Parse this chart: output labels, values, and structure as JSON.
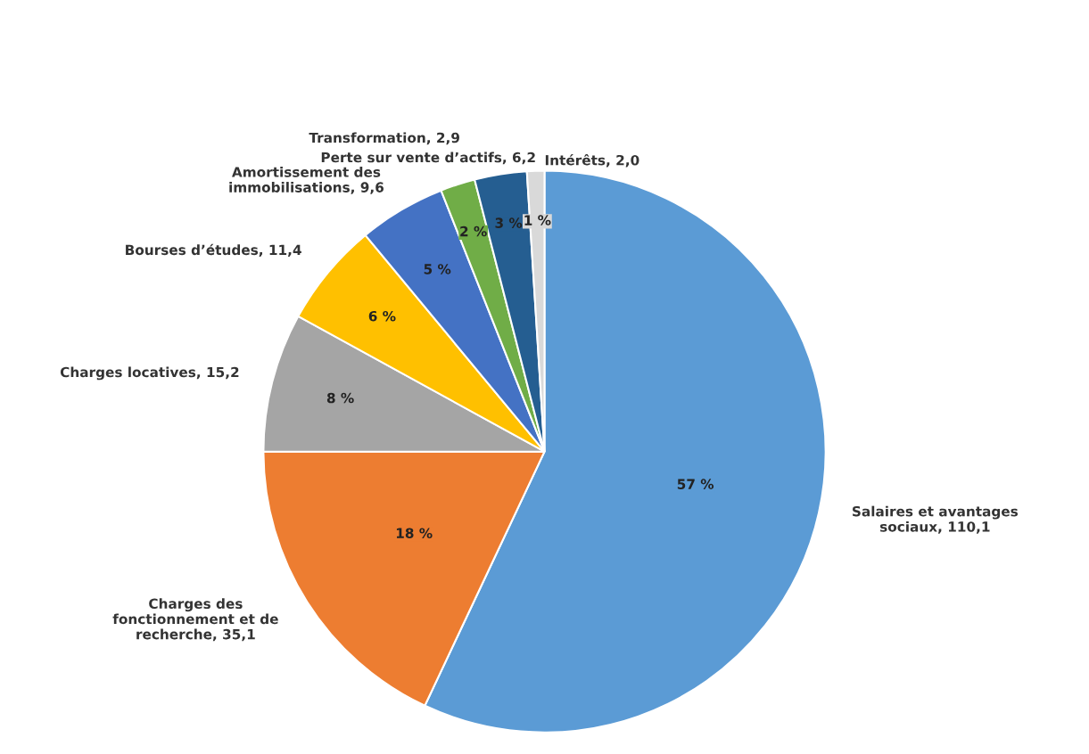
{
  "chart_data": {
    "type": "pie",
    "categories": [
      "Salaires et avantages\nsociaux, 110,1",
      "Charges des\nfonctionnement et de\nrecherche, 35,1",
      "Charges locatives, 15,2",
      "Bourses d’études, 11,4",
      "Amortissement des\nimmobilisations, 9,6",
      "Transformation, 2,9",
      "Perte sur vente d’actifs, 6,2",
      "Intérêts, 2,0"
    ],
    "values": [
      57,
      18,
      8,
      6,
      5,
      2,
      3,
      1
    ],
    "colors": [
      "#5b9bd5",
      "#ed7d31",
      "#a5a5a5",
      "#ffc000",
      "#4472c4",
      "#70ad47",
      "#255e91",
      "#d9d9d9"
    ],
    "value_labels": [
      "57 %",
      "18 %",
      "8 %",
      "6 %",
      "5 %",
      "2 %",
      "3 %",
      "1 %"
    ],
    "legend": false
  }
}
